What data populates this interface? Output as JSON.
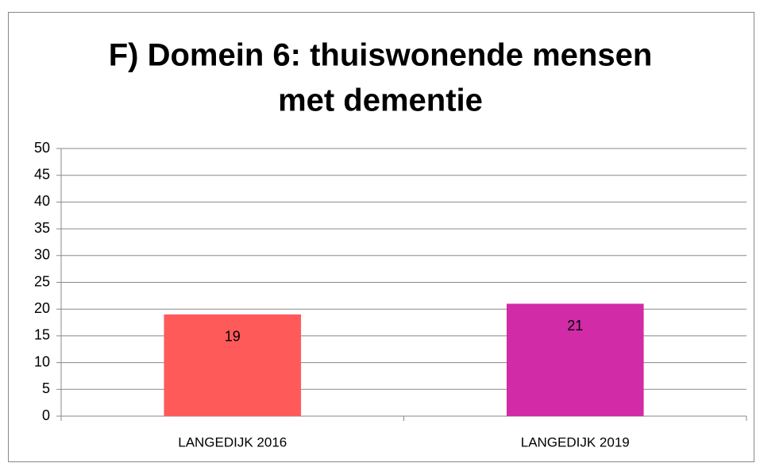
{
  "chart_data": {
    "type": "bar",
    "title": [
      "F) Domein 6: thuiswonende mensen",
      "met dementie"
    ],
    "categories": [
      "LANGEDIJK 2016",
      "LANGEDIJK 2019"
    ],
    "values": [
      19,
      21
    ],
    "colors": [
      "#ff5a5a",
      "#d12ba8"
    ],
    "ylim": [
      0,
      50
    ],
    "yticks": [
      0,
      5,
      10,
      15,
      20,
      25,
      30,
      35,
      40,
      45,
      50
    ],
    "grid": true
  }
}
